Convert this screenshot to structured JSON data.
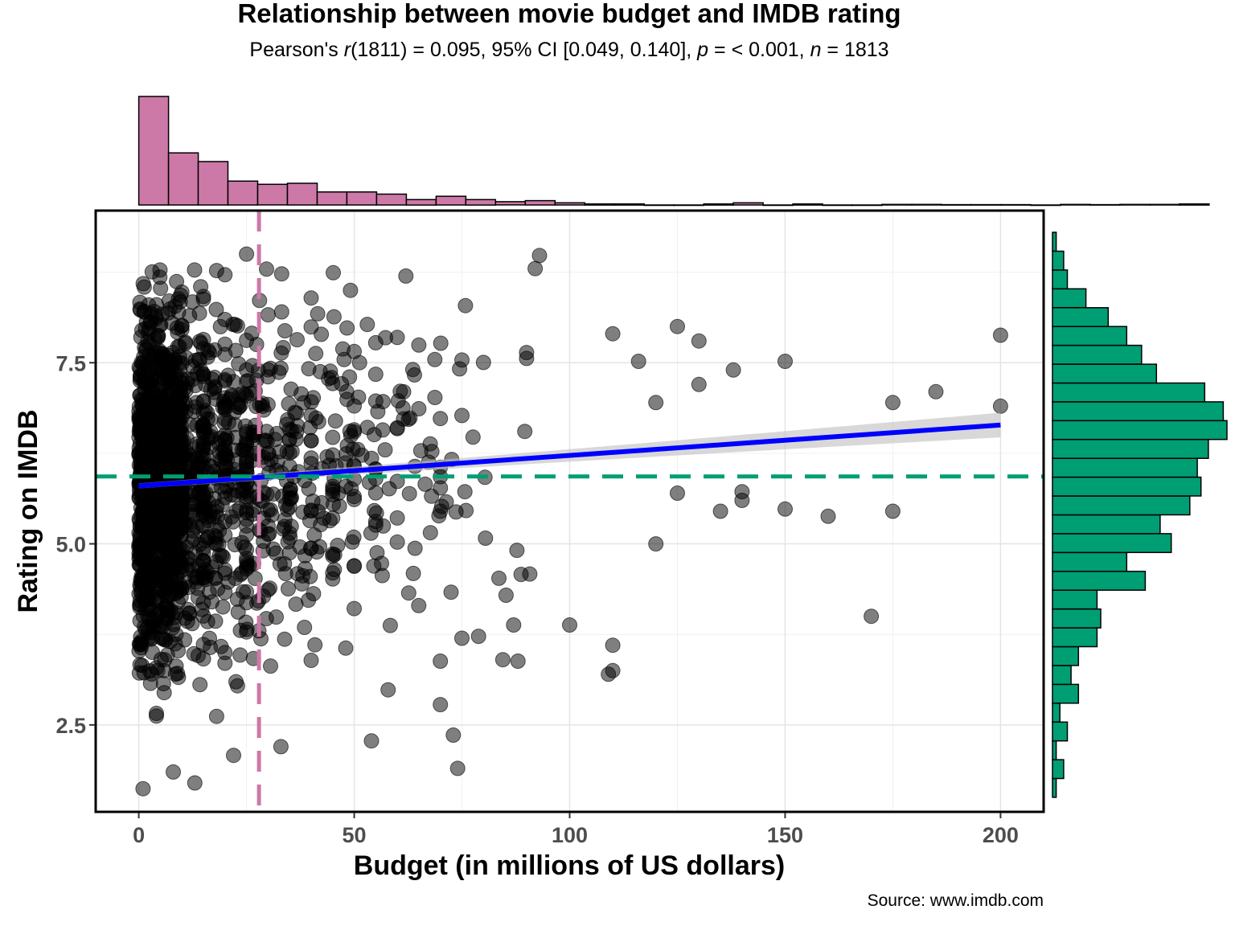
{
  "chart_data": {
    "type": "scatter",
    "title": "Relationship between movie budget and IMDB rating",
    "subtitle_parts": [
      {
        "t": "Pearson's ",
        "i": false
      },
      {
        "t": "r",
        "i": true
      },
      {
        "t": "(1811) = 0.095, 95% CI [0.049, 0.140], ",
        "i": false
      },
      {
        "t": "p",
        "i": true
      },
      {
        "t": " = < 0.001, ",
        "i": false
      },
      {
        "t": "n",
        "i": true
      },
      {
        "t": " = 1813",
        "i": false
      }
    ],
    "xlabel": "Budget (in millions of US dollars)",
    "ylabel": "Rating on IMDB",
    "caption": "Source: www.imdb.com",
    "xlim": [
      -10,
      210
    ],
    "ylim": [
      1.3,
      9.6
    ],
    "x_ticks": [
      0,
      50,
      100,
      150,
      200
    ],
    "y_ticks": [
      2.5,
      5.0,
      7.5
    ],
    "y_tick_labels": [
      "2.5",
      "5.0",
      "7.5"
    ],
    "grid": true,
    "point_color": "#000000",
    "point_alpha": 0.5,
    "n_points": 1813,
    "regression": {
      "intercept": 5.8,
      "slope": 0.0042,
      "color": "#0000FF",
      "ci_color": "#BEBEBE",
      "ci_width_at_min": 0.07,
      "ci_width_at_max": 0.34
    },
    "x_mean_line": {
      "value": 27.9,
      "color": "#CC79A7"
    },
    "y_mean_line": {
      "value": 5.93,
      "color": "#009E73"
    },
    "x_histogram": {
      "color": "#CC79A7",
      "bin_width": 6.9,
      "bin_start": 0,
      "counts": [
        100,
        48,
        40,
        22,
        19,
        20,
        12,
        12,
        10,
        5,
        8,
        5,
        3,
        4,
        2,
        1,
        1,
        0,
        0,
        1,
        2,
        0,
        1,
        0,
        0,
        0.5,
        0.5,
        0.3,
        0.3,
        0.3,
        0,
        0.5,
        0.3,
        0.5,
        0.5,
        1
      ]
    },
    "y_histogram": {
      "color": "#009E73",
      "bin_width": 0.26,
      "bin_start": 1.5,
      "counts": [
        1,
        3,
        1,
        4,
        2,
        7,
        5,
        7,
        12,
        13,
        12,
        25,
        20,
        32,
        29,
        37,
        40,
        39,
        42,
        47,
        46,
        41,
        28,
        24,
        20,
        15,
        9,
        4,
        3,
        1
      ]
    },
    "scatter_samples": [
      {
        "x": 25,
        "y": 9.0
      },
      {
        "x": 93,
        "y": 8.98
      },
      {
        "x": 92,
        "y": 8.8
      },
      {
        "x": 200,
        "y": 7.88
      },
      {
        "x": 200,
        "y": 6.9
      },
      {
        "x": 185,
        "y": 7.1
      },
      {
        "x": 175,
        "y": 6.95
      },
      {
        "x": 175,
        "y": 5.45
      },
      {
        "x": 170,
        "y": 4.0
      },
      {
        "x": 160,
        "y": 5.38
      },
      {
        "x": 150,
        "y": 7.52
      },
      {
        "x": 150,
        "y": 5.48
      },
      {
        "x": 140,
        "y": 5.72
      },
      {
        "x": 140,
        "y": 5.6
      },
      {
        "x": 135,
        "y": 5.45
      },
      {
        "x": 138,
        "y": 7.4
      },
      {
        "x": 130,
        "y": 7.8
      },
      {
        "x": 130,
        "y": 7.2
      },
      {
        "x": 125,
        "y": 8.0
      },
      {
        "x": 125,
        "y": 5.7
      },
      {
        "x": 120,
        "y": 5.0
      },
      {
        "x": 120,
        "y": 6.95
      },
      {
        "x": 116,
        "y": 7.52
      },
      {
        "x": 110,
        "y": 3.6
      },
      {
        "x": 110,
        "y": 3.25
      },
      {
        "x": 109,
        "y": 3.2
      },
      {
        "x": 110,
        "y": 7.9
      },
      {
        "x": 100,
        "y": 3.88
      },
      {
        "x": 88,
        "y": 3.38
      },
      {
        "x": 87,
        "y": 3.88
      },
      {
        "x": 70,
        "y": 3.38
      },
      {
        "x": 70,
        "y": 2.78
      },
      {
        "x": 73,
        "y": 2.36
      },
      {
        "x": 74,
        "y": 1.9
      },
      {
        "x": 54,
        "y": 2.28
      },
      {
        "x": 33,
        "y": 2.2
      },
      {
        "x": 22,
        "y": 2.08
      },
      {
        "x": 13,
        "y": 1.7
      },
      {
        "x": 8,
        "y": 1.85
      },
      {
        "x": 1,
        "y": 1.62
      }
    ]
  }
}
